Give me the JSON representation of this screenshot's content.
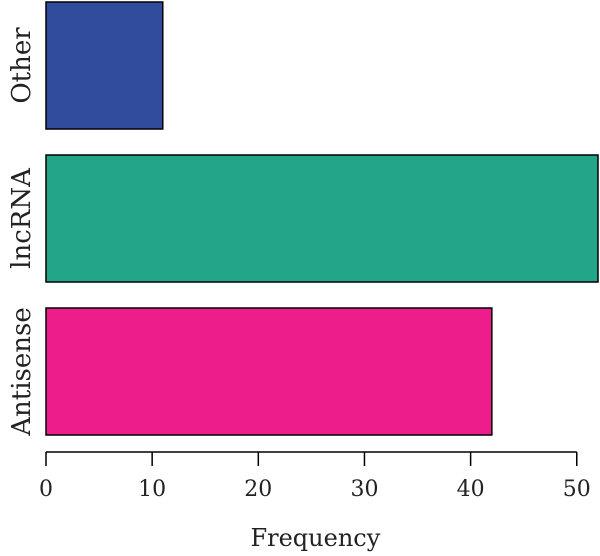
{
  "chart_data": {
    "type": "bar",
    "orientation": "horizontal",
    "categories": [
      "Antisense",
      "lncRNA",
      "Other"
    ],
    "values": [
      42,
      52,
      11
    ],
    "colors": [
      "#ed1e8c",
      "#23a589",
      "#314b9d"
    ],
    "xlabel": "Frequency",
    "xlim": [
      0,
      52
    ],
    "xticks": [
      0,
      10,
      20,
      30,
      40,
      50
    ],
    "grid": false,
    "legend": "none"
  }
}
